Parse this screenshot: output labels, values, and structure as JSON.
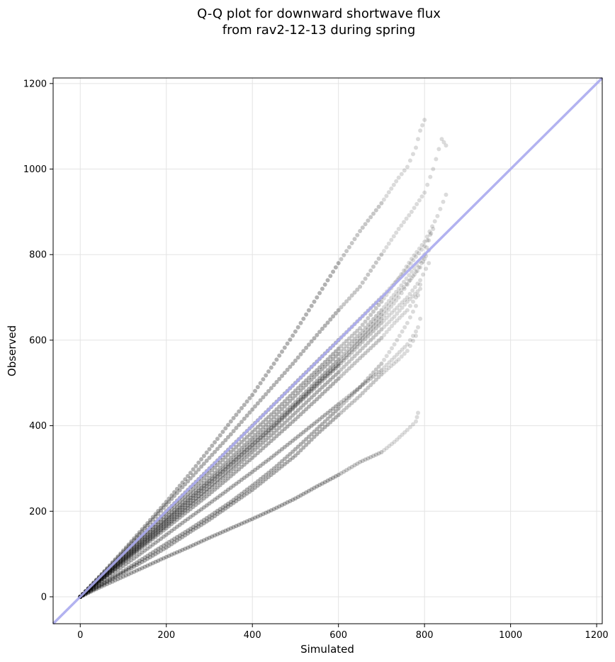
{
  "chart_data": {
    "type": "scatter",
    "title_line1": "Q-Q plot for downward shortwave flux",
    "title_line2": "from rav2-12-13 during spring",
    "xlabel": "Simulated",
    "ylabel": "Observed",
    "xlim": [
      -63,
      1213
    ],
    "ylim": [
      -63,
      1213
    ],
    "x_ticks": [
      0,
      200,
      400,
      600,
      800,
      1000,
      1200
    ],
    "y_ticks": [
      0,
      200,
      400,
      600,
      800,
      1000,
      1200
    ],
    "x_tick_labels": [
      "0",
      "200",
      "400",
      "600",
      "800",
      "1000",
      "1200"
    ],
    "y_tick_labels": [
      "0",
      "200",
      "400",
      "600",
      "800",
      "1000",
      "1200"
    ],
    "grid": true,
    "reference_line": {
      "label": "",
      "color": "#aaaaee",
      "from": [
        -63,
        -63
      ],
      "to": [
        1213,
        1213
      ]
    },
    "point_color": "#000000",
    "series": [
      {
        "points": [
          [
            0,
            0
          ],
          [
            50,
            53
          ],
          [
            100,
            108
          ],
          [
            150,
            165
          ],
          [
            200,
            222
          ],
          [
            250,
            282
          ],
          [
            300,
            345
          ],
          [
            350,
            410
          ],
          [
            400,
            472
          ],
          [
            450,
            545
          ],
          [
            500,
            620
          ],
          [
            550,
            700
          ],
          [
            600,
            780
          ],
          [
            650,
            855
          ],
          [
            700,
            920
          ],
          [
            740,
            980
          ],
          [
            760,
            1005
          ],
          [
            780,
            1050
          ],
          [
            790,
            1090
          ],
          [
            800,
            1115
          ]
        ]
      },
      {
        "points": [
          [
            0,
            0
          ],
          [
            50,
            52
          ],
          [
            100,
            105
          ],
          [
            150,
            160
          ],
          [
            200,
            215
          ],
          [
            250,
            270
          ],
          [
            300,
            325
          ],
          [
            350,
            380
          ],
          [
            400,
            438
          ],
          [
            450,
            495
          ],
          [
            500,
            552
          ],
          [
            550,
            612
          ],
          [
            600,
            670
          ],
          [
            650,
            725
          ],
          [
            700,
            800
          ],
          [
            740,
            860
          ],
          [
            770,
            900
          ],
          [
            800,
            945
          ],
          [
            820,
            1000
          ],
          [
            840,
            1070
          ],
          [
            850,
            1055
          ]
        ]
      },
      {
        "points": [
          [
            0,
            0
          ],
          [
            50,
            50
          ],
          [
            100,
            100
          ],
          [
            150,
            150
          ],
          [
            200,
            200
          ],
          [
            250,
            250
          ],
          [
            300,
            300
          ],
          [
            350,
            350
          ],
          [
            400,
            400
          ],
          [
            450,
            450
          ],
          [
            500,
            500
          ],
          [
            550,
            550
          ],
          [
            600,
            600
          ],
          [
            650,
            650
          ],
          [
            700,
            700
          ],
          [
            750,
            755
          ],
          [
            780,
            795
          ],
          [
            800,
            820
          ],
          [
            820,
            860
          ]
        ]
      },
      {
        "points": [
          [
            0,
            0
          ],
          [
            50,
            49
          ],
          [
            100,
            97
          ],
          [
            150,
            145
          ],
          [
            200,
            193
          ],
          [
            250,
            240
          ],
          [
            300,
            290
          ],
          [
            350,
            338
          ],
          [
            400,
            385
          ],
          [
            450,
            432
          ],
          [
            500,
            482
          ],
          [
            550,
            530
          ],
          [
            600,
            580
          ],
          [
            650,
            628
          ],
          [
            700,
            690
          ],
          [
            740,
            745
          ],
          [
            770,
            790
          ],
          [
            800,
            830
          ],
          [
            830,
            890
          ],
          [
            850,
            940
          ]
        ]
      },
      {
        "points": [
          [
            0,
            0
          ],
          [
            50,
            47
          ],
          [
            100,
            93
          ],
          [
            150,
            140
          ],
          [
            200,
            185
          ],
          [
            250,
            232
          ],
          [
            300,
            278
          ],
          [
            350,
            325
          ],
          [
            400,
            372
          ],
          [
            450,
            420
          ],
          [
            500,
            470
          ],
          [
            550,
            520
          ],
          [
            600,
            568
          ],
          [
            650,
            615
          ],
          [
            700,
            670
          ],
          [
            740,
            720
          ],
          [
            770,
            760
          ],
          [
            800,
            800
          ],
          [
            815,
            850
          ]
        ]
      },
      {
        "points": [
          [
            0,
            0
          ],
          [
            50,
            45
          ],
          [
            100,
            90
          ],
          [
            150,
            135
          ],
          [
            200,
            180
          ],
          [
            250,
            225
          ],
          [
            300,
            270
          ],
          [
            350,
            315
          ],
          [
            400,
            362
          ],
          [
            450,
            408
          ],
          [
            500,
            455
          ],
          [
            550,
            505
          ],
          [
            600,
            555
          ],
          [
            650,
            605
          ],
          [
            700,
            660
          ],
          [
            740,
            710
          ],
          [
            770,
            745
          ],
          [
            790,
            770
          ],
          [
            810,
            810
          ]
        ]
      },
      {
        "points": [
          [
            0,
            0
          ],
          [
            50,
            44
          ],
          [
            100,
            88
          ],
          [
            150,
            132
          ],
          [
            200,
            176
          ],
          [
            250,
            220
          ],
          [
            300,
            265
          ],
          [
            350,
            310
          ],
          [
            400,
            355
          ],
          [
            450,
            400
          ],
          [
            500,
            448
          ],
          [
            550,
            498
          ],
          [
            600,
            545
          ],
          [
            650,
            598
          ],
          [
            700,
            650
          ],
          [
            740,
            700
          ],
          [
            760,
            730
          ],
          [
            780,
            760
          ],
          [
            800,
            790
          ]
        ]
      },
      {
        "points": [
          [
            0,
            0
          ],
          [
            50,
            42
          ],
          [
            100,
            85
          ],
          [
            150,
            128
          ],
          [
            200,
            170
          ],
          [
            250,
            213
          ],
          [
            300,
            257
          ],
          [
            350,
            302
          ],
          [
            400,
            348
          ],
          [
            450,
            395
          ],
          [
            500,
            445
          ],
          [
            550,
            493
          ],
          [
            600,
            540
          ],
          [
            650,
            590
          ],
          [
            700,
            640
          ],
          [
            730,
            670
          ],
          [
            760,
            700
          ],
          [
            790,
            740
          ],
          [
            810,
            780
          ]
        ]
      },
      {
        "points": [
          [
            0,
            0
          ],
          [
            50,
            41
          ],
          [
            100,
            82
          ],
          [
            150,
            124
          ],
          [
            200,
            166
          ],
          [
            250,
            208
          ],
          [
            300,
            250
          ],
          [
            350,
            293
          ],
          [
            400,
            338
          ],
          [
            450,
            383
          ],
          [
            500,
            430
          ],
          [
            550,
            478
          ],
          [
            600,
            525
          ],
          [
            650,
            575
          ],
          [
            700,
            625
          ],
          [
            730,
            655
          ],
          [
            760,
            690
          ],
          [
            790,
            720
          ]
        ]
      },
      {
        "points": [
          [
            0,
            0
          ],
          [
            50,
            40
          ],
          [
            100,
            80
          ],
          [
            150,
            120
          ],
          [
            200,
            160
          ],
          [
            250,
            200
          ],
          [
            300,
            240
          ],
          [
            350,
            282
          ],
          [
            400,
            325
          ],
          [
            450,
            370
          ],
          [
            500,
            415
          ],
          [
            550,
            462
          ],
          [
            600,
            510
          ],
          [
            650,
            558
          ],
          [
            700,
            605
          ],
          [
            730,
            640
          ],
          [
            760,
            670
          ],
          [
            780,
            700
          ]
        ]
      },
      {
        "points": [
          [
            0,
            0
          ],
          [
            50,
            36
          ],
          [
            100,
            72
          ],
          [
            150,
            108
          ],
          [
            200,
            145
          ],
          [
            250,
            182
          ],
          [
            300,
            218
          ],
          [
            350,
            255
          ],
          [
            400,
            292
          ],
          [
            450,
            330
          ],
          [
            500,
            370
          ],
          [
            550,
            410
          ],
          [
            600,
            450
          ],
          [
            650,
            490
          ],
          [
            700,
            530
          ],
          [
            730,
            560
          ],
          [
            760,
            590
          ],
          [
            780,
            620
          ]
        ]
      },
      {
        "points": [
          [
            0,
            0
          ],
          [
            50,
            30
          ],
          [
            100,
            60
          ],
          [
            150,
            92
          ],
          [
            200,
            124
          ],
          [
            250,
            155
          ],
          [
            300,
            188
          ],
          [
            350,
            222
          ],
          [
            400,
            260
          ],
          [
            450,
            300
          ],
          [
            500,
            345
          ],
          [
            550,
            392
          ],
          [
            600,
            440
          ],
          [
            650,
            490
          ],
          [
            700,
            545
          ],
          [
            730,
            590
          ],
          [
            760,
            640
          ],
          [
            780,
            680
          ],
          [
            790,
            730
          ]
        ]
      },
      {
        "points": [
          [
            0,
            0
          ],
          [
            50,
            28
          ],
          [
            100,
            56
          ],
          [
            150,
            85
          ],
          [
            200,
            115
          ],
          [
            250,
            148
          ],
          [
            300,
            180
          ],
          [
            350,
            215
          ],
          [
            400,
            250
          ],
          [
            450,
            290
          ],
          [
            500,
            330
          ],
          [
            550,
            380
          ],
          [
            600,
            425
          ],
          [
            650,
            470
          ],
          [
            700,
            520
          ],
          [
            740,
            555
          ],
          [
            760,
            575
          ],
          [
            780,
            610
          ],
          [
            790,
            650
          ]
        ]
      },
      {
        "points": [
          [
            0,
            0
          ],
          [
            50,
            24
          ],
          [
            100,
            47
          ],
          [
            150,
            70
          ],
          [
            200,
            93
          ],
          [
            250,
            115
          ],
          [
            300,
            138
          ],
          [
            350,
            160
          ],
          [
            400,
            182
          ],
          [
            450,
            205
          ],
          [
            500,
            230
          ],
          [
            550,
            258
          ],
          [
            600,
            285
          ],
          [
            650,
            315
          ],
          [
            700,
            338
          ],
          [
            730,
            362
          ],
          [
            760,
            390
          ],
          [
            780,
            410
          ],
          [
            785,
            430
          ]
        ]
      }
    ]
  }
}
